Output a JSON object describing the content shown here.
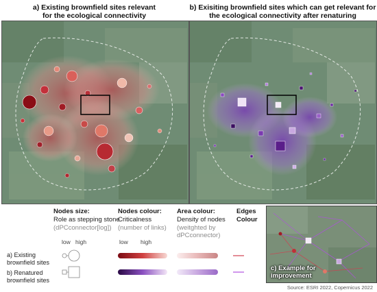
{
  "titles": {
    "a_line1": "a) Existing brownfield sites relevant",
    "a_line2": "for the ecological connectivity",
    "b_line1": "b) Exisiting brownfield sites which can get relevant for",
    "b_line2": "the ecological connectivity after renaturing"
  },
  "legend": {
    "size": {
      "head": "Nodes size:",
      "sub": "Role as stepping stone",
      "param": "(dPCconnector[log])"
    },
    "colour": {
      "head": "Nodes colour:",
      "sub": "Criticalness",
      "param": "(number of links)"
    },
    "area": {
      "head": "Area colour:",
      "sub": "Density of nodes",
      "param1": "(weitghted by",
      "param2": "dPCconnector)"
    },
    "edges": {
      "head1": "Edges",
      "head2": "Colour"
    },
    "low": "low",
    "high": "high",
    "rows": {
      "a_line1": "a) Existing",
      "a_line2": "brownfield sites",
      "b_line1": "b) Renatured",
      "b_line2": "brownfield sites"
    },
    "colors": {
      "existing_node_low": "#f7d9d4",
      "existing_node_high": "#7a0a12",
      "renatured_node_low": "#2a0a45",
      "renatured_node_high": "#f3e6f7",
      "existing_area": "#c98585",
      "renatured_area": "#9a6ac8",
      "existing_edge": "#d04050",
      "renatured_edge": "#b050e0"
    }
  },
  "inset": {
    "label_line1": "c) Example for",
    "label_line2": "improvement"
  },
  "source": "Source: ESRI 2022, Copernicus 2022"
}
